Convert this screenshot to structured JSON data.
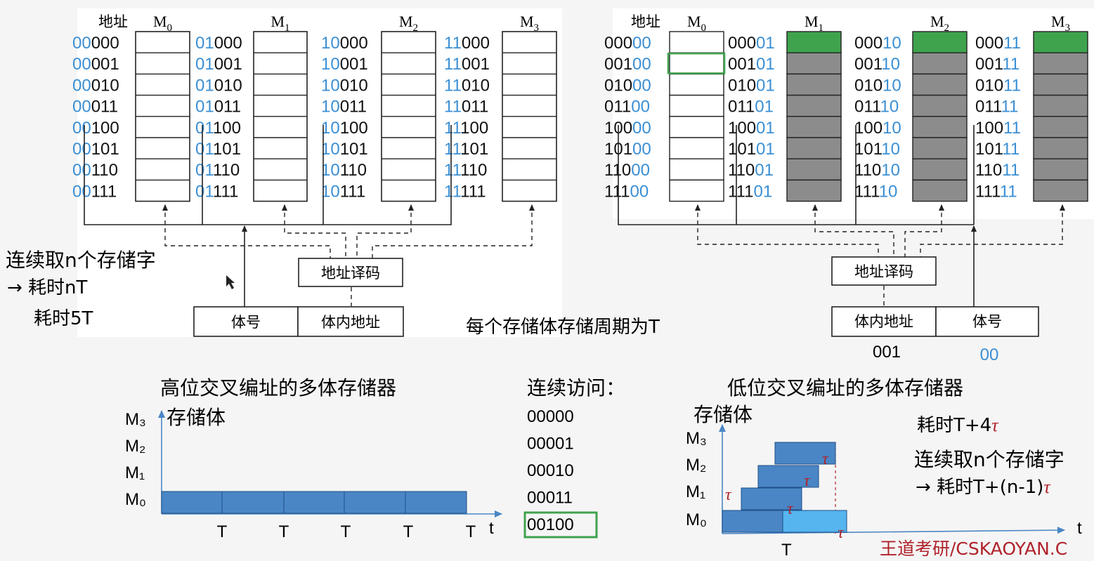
{
  "left_panel": {
    "addr_header": "地址",
    "modules": [
      {
        "label": "M",
        "sub": "0",
        "prefix": "00",
        "suffixes": [
          "000",
          "001",
          "010",
          "011",
          "100",
          "101",
          "110",
          "111"
        ]
      },
      {
        "label": "M",
        "sub": "1",
        "prefix": "01",
        "suffixes": [
          "000",
          "001",
          "010",
          "011",
          "100",
          "101",
          "110",
          "111"
        ]
      },
      {
        "label": "M",
        "sub": "2",
        "prefix": "10",
        "suffixes": [
          "000",
          "001",
          "010",
          "011",
          "100",
          "101",
          "110",
          "111"
        ]
      },
      {
        "label": "M",
        "sub": "3",
        "prefix": "11",
        "suffixes": [
          "000",
          "001",
          "010",
          "011",
          "100",
          "101",
          "110",
          "111"
        ]
      }
    ],
    "decoder_label": "地址译码",
    "addr_reg": {
      "left": "体号",
      "right": "体内地址"
    },
    "title": "高位交叉编址的多体存储器"
  },
  "right_panel": {
    "addr_header": "地址",
    "modules": [
      {
        "label": "M",
        "sub": "0",
        "suffix": "00",
        "prefixes": [
          "000",
          "001",
          "010",
          "011",
          "100",
          "101",
          "110",
          "111"
        ]
      },
      {
        "label": "M",
        "sub": "1",
        "suffix": "01",
        "prefixes": [
          "000",
          "001",
          "010",
          "011",
          "100",
          "101",
          "110",
          "111"
        ]
      },
      {
        "label": "M",
        "sub": "2",
        "suffix": "10",
        "prefixes": [
          "000",
          "001",
          "010",
          "011",
          "100",
          "101",
          "110",
          "111"
        ]
      },
      {
        "label": "M",
        "sub": "3",
        "suffix": "11",
        "prefixes": [
          "000",
          "001",
          "010",
          "011",
          "100",
          "101",
          "110",
          "111"
        ]
      }
    ],
    "decoder_label": "地址译码",
    "addr_reg": {
      "left": "体内地址",
      "right": "体号"
    },
    "addr_values": {
      "inner": "001",
      "bank": "00"
    },
    "title": "低位交叉编址的多体存储器"
  },
  "notes": {
    "seq_fetch": "连续取n个存储字",
    "time_nt": "→ 耗时nT",
    "time_5t": "耗时5T",
    "cycle": "每个存储体存储周期为T",
    "seq_access_title": "连续访问：",
    "seq_access_list": [
      "00000",
      "00001",
      "00010",
      "00011",
      "00100"
    ],
    "low_time1": "耗时T+4",
    "low_seq": "连续取n个存储字",
    "low_time2": "→ 耗时T+(n-1)",
    "tau": "τ",
    "watermark": "王道考研/CSKAOYAN.C"
  },
  "timeline_left": {
    "ylabel": "存储体",
    "rows": [
      "M₃",
      "M₂",
      "M₁",
      "M₀"
    ],
    "ticks": [
      "T",
      "T",
      "T",
      "T",
      "T"
    ],
    "taxis": "t"
  },
  "timeline_right": {
    "ylabel": "存储体",
    "rows": [
      "M₃",
      "M₂",
      "M₁",
      "M₀"
    ],
    "tick": "T",
    "taxis": "t"
  },
  "colors": {
    "highlight": "#3b8fd4",
    "green": "#3fa34d",
    "gray": "#8c8c8c",
    "bar": "#4a86c5",
    "bar_light": "#56b4ee",
    "tau": "#b0222a"
  }
}
